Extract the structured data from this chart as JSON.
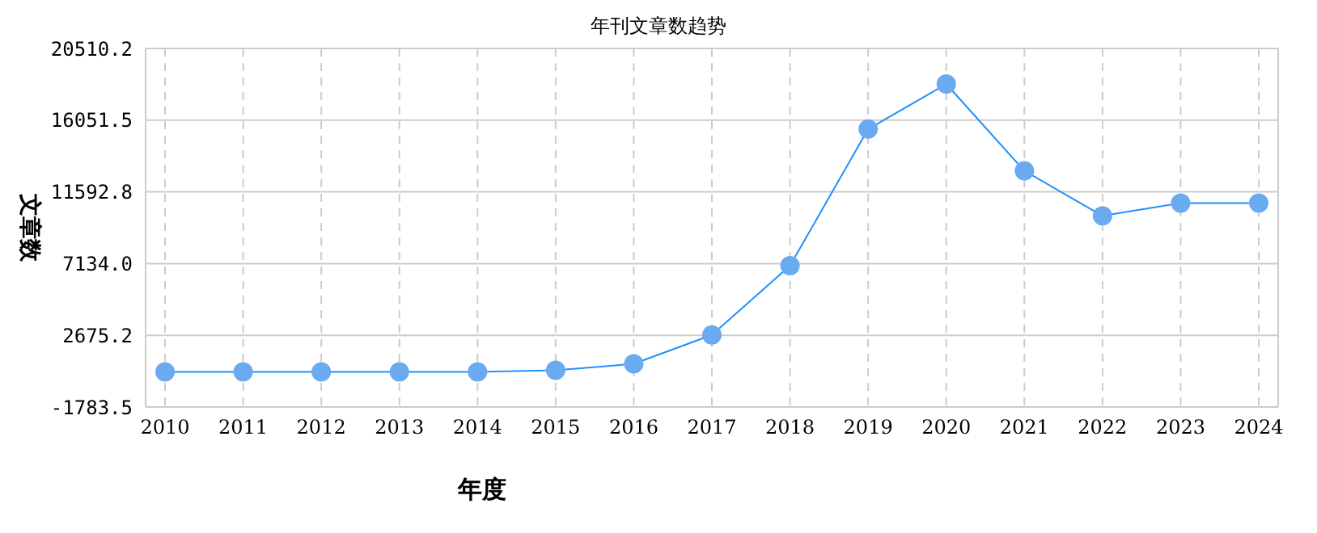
{
  "chart_data": {
    "type": "line",
    "title": "年刊文章数趋势",
    "xlabel": "年度",
    "ylabel": "文章数",
    "categories": [
      "2010",
      "2011",
      "2012",
      "2013",
      "2014",
      "2015",
      "2016",
      "2017",
      "2018",
      "2019",
      "2020",
      "2021",
      "2022",
      "2023",
      "2024"
    ],
    "series": [
      {
        "color": "#1e90ff",
        "values": [
          400,
          400,
          400,
          400,
          400,
          500,
          900,
          2700,
          7000,
          15500,
          18300,
          12900,
          10100,
          10900,
          10900
        ]
      }
    ],
    "ylim": [
      -1783.5,
      20510.2
    ],
    "yticks": [
      {
        "value": -1783.5,
        "label": "-1783.5"
      },
      {
        "value": 2675.2,
        "label": "2675.2"
      },
      {
        "value": 7134.0,
        "label": "7134.0"
      },
      {
        "value": 11592.8,
        "label": "11592.8"
      },
      {
        "value": 16051.5,
        "label": "16051.5"
      },
      {
        "value": 20510.2,
        "label": "20510.2"
      }
    ],
    "grid": true,
    "marker": "circle",
    "line_style": "solid"
  }
}
